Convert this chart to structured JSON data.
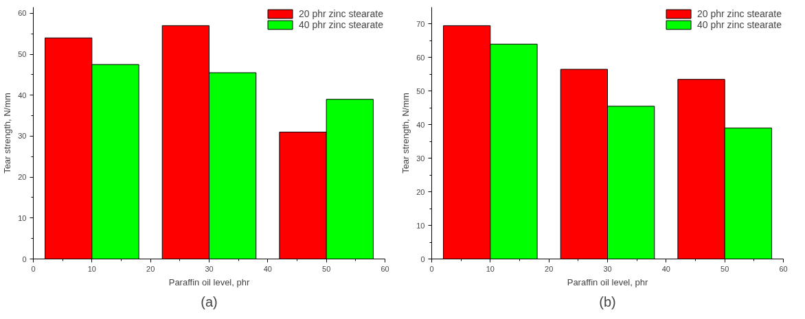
{
  "chart_data": [
    {
      "type": "bar",
      "xlabel": "Paraffin oil level, phr",
      "ylabel": "Tear strength, N/mm",
      "annotations": [
        "(a)"
      ],
      "xlim": [
        0,
        60
      ],
      "xticks": [
        0,
        10,
        20,
        30,
        40,
        50,
        60
      ],
      "ylim": [
        0,
        61.5
      ],
      "yticks": [
        0,
        10,
        20,
        30,
        40,
        50,
        60
      ],
      "legend": "top right",
      "grid": false,
      "series": [
        {
          "name": "20 phr zinc stearate",
          "color": "#ff0000",
          "x": [
            6,
            26,
            46
          ],
          "values": [
            54,
            57,
            31
          ]
        },
        {
          "name": "40 phr zinc stearate",
          "color": "#00ff00",
          "x": [
            14,
            34,
            54
          ],
          "values": [
            47.5,
            45.5,
            39
          ]
        }
      ]
    },
    {
      "type": "bar",
      "xlabel": "Paraffin oil level, phr",
      "ylabel": "Tear strength, N/mm",
      "annotations": [
        "(b)"
      ],
      "xlim": [
        0,
        60
      ],
      "xticks": [
        0,
        10,
        20,
        30,
        40,
        50,
        60
      ],
      "ylim": [
        0,
        75
      ],
      "yticks": [
        0,
        10,
        20,
        30,
        40,
        50,
        60,
        70
      ],
      "legend": "top right",
      "grid": false,
      "series": [
        {
          "name": "20 phr zinc stearate",
          "color": "#ff0000",
          "x": [
            6,
            26,
            46
          ],
          "values": [
            69.5,
            56.5,
            53.5
          ]
        },
        {
          "name": "40 phr zinc stearate",
          "color": "#00ff00",
          "x": [
            14,
            34,
            54
          ],
          "values": [
            64,
            45.5,
            39
          ]
        }
      ]
    }
  ]
}
